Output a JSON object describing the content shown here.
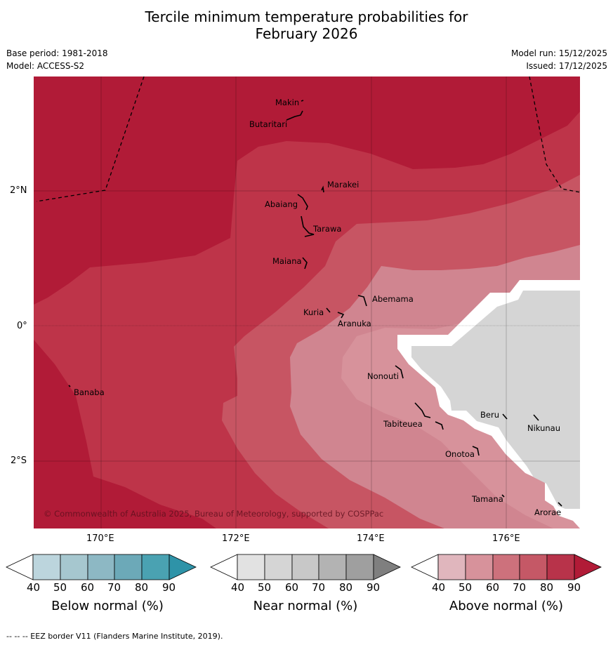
{
  "title_line1": "Tercile minimum temperature probabilities for",
  "title_line2": "February 2026",
  "meta": {
    "base_period": "Base period: 1981-2018",
    "model": "Model: ACCESS-S2",
    "model_run": "Model run: 15/12/2025",
    "issued": "Issued: 17/12/2025"
  },
  "map": {
    "copyright": "© Commonwealth of Australia 2025, Bureau of Meteorology, supported by COSPPac",
    "lat_labels": [
      "2°N",
      "0°",
      "2°S"
    ],
    "lon_labels": [
      "170°E",
      "172°E",
      "174°E",
      "176°E"
    ],
    "islands": [
      "Makin",
      "Butaritari",
      "Marakei",
      "Abaiang",
      "Tarawa",
      "Maiana",
      "Abemama",
      "Kuria",
      "Aranuka",
      "Banaba",
      "Nonouti",
      "Tabiteuea",
      "Beru",
      "Nikunau",
      "Onotoa",
      "Tamana",
      "Arorae"
    ],
    "colors": {
      "above_90": "#B11B37",
      "above_80": "#BE3449",
      "above_70": "#C75563",
      "above_60": "#D08590",
      "near_50": "#D5D5D5",
      "no_data": "#FFFFFF"
    }
  },
  "colorbars": [
    {
      "label": "Below normal (%)",
      "ticks": [
        "40",
        "50",
        "60",
        "70",
        "80",
        "90"
      ],
      "colors": [
        "#FFFFFF",
        "#BCD5DD",
        "#A6C7CF",
        "#8DB8C4",
        "#6CA9B8",
        "#4AA2B2",
        "#2E93A8"
      ]
    },
    {
      "label": "Near normal (%)",
      "ticks": [
        "40",
        "50",
        "60",
        "70",
        "80",
        "90"
      ],
      "colors": [
        "#FFFFFF",
        "#E2E2E2",
        "#D5D5D5",
        "#C8C8C8",
        "#B3B3B3",
        "#9F9F9F",
        "#7F7F7F"
      ]
    },
    {
      "label": "Above normal (%)",
      "ticks": [
        "40",
        "50",
        "60",
        "70",
        "80",
        "90"
      ],
      "colors": [
        "#FFFFFF",
        "#E0B6BD",
        "#D7929B",
        "#CD717C",
        "#C55866",
        "#B8334A",
        "#B11B37"
      ]
    }
  ],
  "footer": "--  --  -- EEZ border V11 (Flanders Marine Institute, 2019)."
}
